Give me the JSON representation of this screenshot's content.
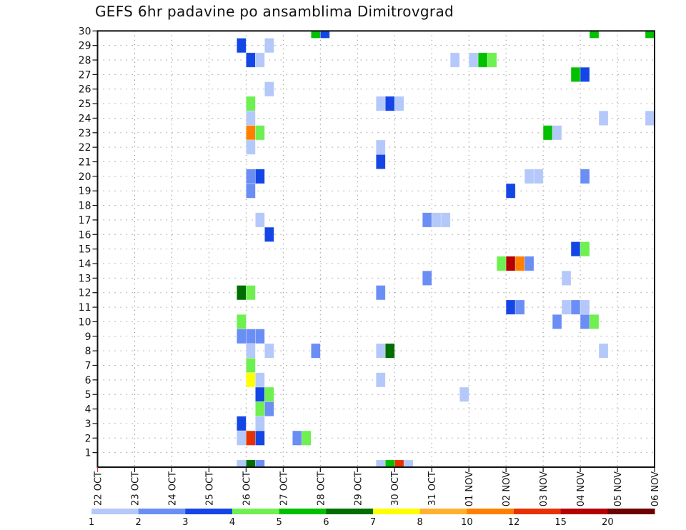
{
  "title": "GEFS 6hr padavine po ansamblima Dimitrovgrad",
  "chart_data": {
    "type": "heatmap",
    "title": "GEFS 6hr padavine po ansamblima Dimitrovgrad",
    "xlabel": "",
    "ylabel": "",
    "x_unit": "6-hour steps from 22 OCT 00Z",
    "xlim": [
      0,
      60
    ],
    "ylim": [
      0,
      30
    ],
    "x_tick_labels": [
      "22 OCT",
      "23 OCT",
      "24 OCT",
      "25 OCT",
      "26 OCT",
      "27 OCT",
      "28 OCT",
      "29 OCT",
      "30 OCT",
      "31 OCT",
      "01 NOV",
      "02 NOV",
      "03 NOV",
      "04 NOV",
      "05 NOV",
      "06 NOV"
    ],
    "y_tick_labels": [
      "1",
      "2",
      "3",
      "4",
      "5",
      "6",
      "7",
      "8",
      "9",
      "10",
      "11",
      "12",
      "13",
      "14",
      "15",
      "16",
      "17",
      "18",
      "19",
      "20",
      "21",
      "22",
      "23",
      "24",
      "25",
      "26",
      "27",
      "28",
      "29",
      "30"
    ],
    "grid": true,
    "legend": {
      "placement": "bottom",
      "levels": [
        "1",
        "2",
        "3",
        "4",
        "5",
        "6",
        "7",
        "8",
        "10",
        "12",
        "15",
        "20"
      ],
      "colors": [
        "#b4c8fa",
        "#6b8ef5",
        "#1446e6",
        "#6ef050",
        "#00c000",
        "#006e00",
        "#ffff00",
        "#ffb030",
        "#ff8000",
        "#e63200",
        "#b40000",
        "#6e0000"
      ]
    },
    "cells_format": [
      "member",
      "step",
      "value_mm"
    ],
    "cells": [
      [
        30,
        23,
        5.5
      ],
      [
        30,
        24,
        3.5
      ],
      [
        30,
        53,
        5.5
      ],
      [
        30,
        59,
        5.5
      ],
      [
        29,
        15,
        3.5
      ],
      [
        29,
        18,
        1.5
      ],
      [
        28,
        16,
        3.5
      ],
      [
        28,
        17,
        1.5
      ],
      [
        28,
        38,
        1.5
      ],
      [
        28,
        40,
        1.5
      ],
      [
        28,
        41,
        5.5
      ],
      [
        28,
        42,
        4.5
      ],
      [
        27,
        51,
        5.5
      ],
      [
        27,
        52,
        3.5
      ],
      [
        26,
        18,
        1.5
      ],
      [
        25,
        16,
        4.5
      ],
      [
        25,
        30,
        1.5
      ],
      [
        25,
        31,
        3.5
      ],
      [
        25,
        32,
        1.5
      ],
      [
        24,
        16,
        1.5
      ],
      [
        24,
        54,
        1.5
      ],
      [
        24,
        59,
        1.5
      ],
      [
        23,
        16,
        11
      ],
      [
        23,
        17,
        4.5
      ],
      [
        23,
        48,
        5.5
      ],
      [
        23,
        49,
        1.5
      ],
      [
        22,
        16,
        1.5
      ],
      [
        22,
        30,
        1.5
      ],
      [
        21,
        30,
        3.5
      ],
      [
        20,
        16,
        2.5
      ],
      [
        20,
        17,
        3.5
      ],
      [
        20,
        46,
        1.5
      ],
      [
        20,
        47,
        1.5
      ],
      [
        20,
        52,
        2.5
      ],
      [
        19,
        16,
        2.5
      ],
      [
        19,
        44,
        3.5
      ],
      [
        17,
        17,
        1.5
      ],
      [
        17,
        35,
        2.5
      ],
      [
        17,
        36,
        1.5
      ],
      [
        17,
        37,
        1.5
      ],
      [
        16,
        18,
        3.5
      ],
      [
        15,
        51,
        3.5
      ],
      [
        15,
        52,
        4.5
      ],
      [
        14,
        43,
        4.5
      ],
      [
        14,
        44,
        17.5
      ],
      [
        14,
        45,
        11
      ],
      [
        14,
        46,
        2.5
      ],
      [
        13,
        35,
        2.5
      ],
      [
        13,
        50,
        1.5
      ],
      [
        12,
        15,
        6.5
      ],
      [
        12,
        16,
        4.5
      ],
      [
        12,
        30,
        2.5
      ],
      [
        11,
        44,
        3.5
      ],
      [
        11,
        45,
        2.5
      ],
      [
        11,
        50,
        1.5
      ],
      [
        11,
        51,
        2.5
      ],
      [
        11,
        52,
        1.5
      ],
      [
        10,
        15,
        4.5
      ],
      [
        10,
        49,
        2.5
      ],
      [
        10,
        52,
        2.5
      ],
      [
        10,
        53,
        4.5
      ],
      [
        9,
        15,
        2.5
      ],
      [
        9,
        16,
        2.5
      ],
      [
        9,
        17,
        2.5
      ],
      [
        8,
        16,
        1.5
      ],
      [
        8,
        18,
        1.5
      ],
      [
        8,
        23,
        2.5
      ],
      [
        8,
        30,
        1.5
      ],
      [
        8,
        31,
        6.5
      ],
      [
        8,
        54,
        1.5
      ],
      [
        7,
        16,
        4.5
      ],
      [
        6,
        16,
        7.5
      ],
      [
        6,
        17,
        1.5
      ],
      [
        6,
        30,
        1.5
      ],
      [
        5,
        17,
        3.5
      ],
      [
        5,
        18,
        4.5
      ],
      [
        5,
        39,
        1.5
      ],
      [
        4,
        17,
        4.5
      ],
      [
        4,
        18,
        2.5
      ],
      [
        3,
        15,
        3.5
      ],
      [
        3,
        17,
        1.5
      ],
      [
        2,
        15,
        1.5
      ],
      [
        2,
        16,
        13.5
      ],
      [
        2,
        17,
        3.5
      ],
      [
        2,
        21,
        2.5
      ],
      [
        2,
        22,
        4.5
      ],
      [
        0,
        15,
        1.5
      ],
      [
        0,
        16,
        6.5
      ],
      [
        0,
        17,
        2.5
      ],
      [
        0,
        30,
        1.5
      ],
      [
        0,
        31,
        5.5
      ],
      [
        0,
        32,
        13.5
      ],
      [
        0,
        33,
        1.5
      ]
    ]
  }
}
